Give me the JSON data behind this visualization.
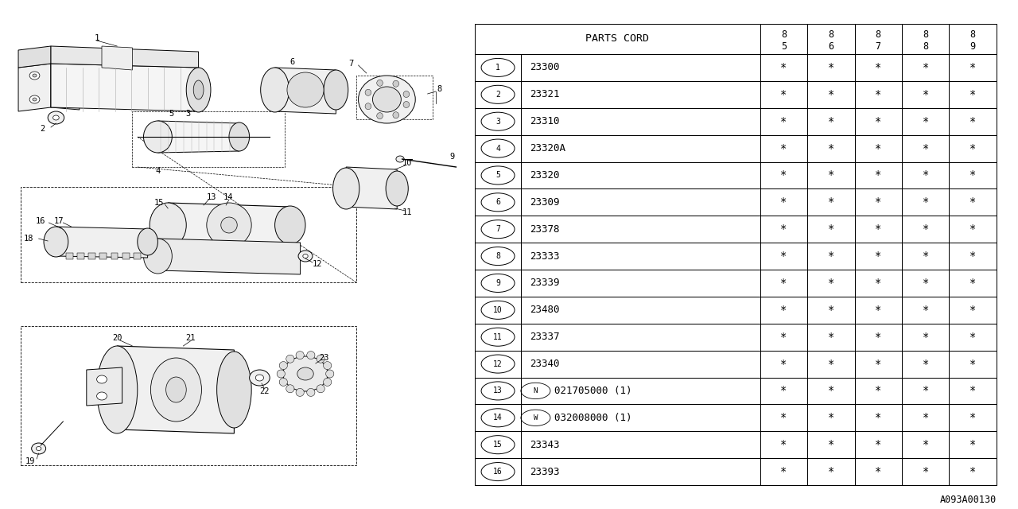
{
  "background_color": "#ffffff",
  "table_header": "PARTS CORD",
  "col_headers": [
    [
      "8",
      "5"
    ],
    [
      "8",
      "6"
    ],
    [
      "8",
      "7"
    ],
    [
      "8",
      "8"
    ],
    [
      "8",
      "9"
    ]
  ],
  "rows": [
    {
      "num": "1",
      "code": "23300",
      "special": null
    },
    {
      "num": "2",
      "code": "23321",
      "special": null
    },
    {
      "num": "3",
      "code": "23310",
      "special": null
    },
    {
      "num": "4",
      "code": "23320A",
      "special": null
    },
    {
      "num": "5",
      "code": "23320",
      "special": null
    },
    {
      "num": "6",
      "code": "23309",
      "special": null
    },
    {
      "num": "7",
      "code": "23378",
      "special": null
    },
    {
      "num": "8",
      "code": "23333",
      "special": null
    },
    {
      "num": "9",
      "code": "23339",
      "special": null
    },
    {
      "num": "10",
      "code": "23480",
      "special": null
    },
    {
      "num": "11",
      "code": "23337",
      "special": null
    },
    {
      "num": "12",
      "code": "23340",
      "special": null
    },
    {
      "num": "13",
      "code": "021705000 (1)",
      "special": "N"
    },
    {
      "num": "14",
      "code": "032008000 (1)",
      "special": "W"
    },
    {
      "num": "15",
      "code": "23343",
      "special": null
    },
    {
      "num": "16",
      "code": "23393",
      "special": null
    }
  ],
  "footer_code": "A093A00130",
  "line_color": "#000000",
  "text_color": "#000000"
}
